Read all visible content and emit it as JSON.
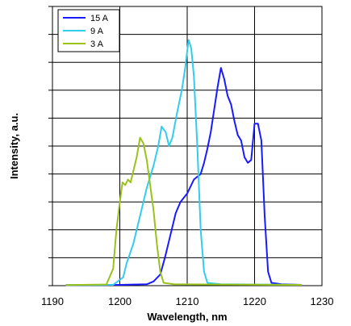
{
  "chart_data": {
    "type": "line",
    "xlabel": "Wavelength, nm",
    "ylabel": "Intensity, a.u.",
    "xlim": [
      1190,
      1230
    ],
    "ylim": [
      0,
      10
    ],
    "x_ticks": [
      "1190",
      "1200",
      "1210",
      "1220",
      "1230"
    ],
    "y_tick_labels_shown": false,
    "grid": "vertical and horizontal",
    "legend_position": "top-left",
    "series": [
      {
        "name": "15 A",
        "color": "#1a1aff",
        "points": [
          [
            1192,
            0.02
          ],
          [
            1200,
            0.03
          ],
          [
            1204,
            0.05
          ],
          [
            1205,
            0.15
          ],
          [
            1206,
            0.4
          ],
          [
            1206.7,
            1.0
          ],
          [
            1207.5,
            1.8
          ],
          [
            1208.3,
            2.6
          ],
          [
            1209,
            3.0
          ],
          [
            1210,
            3.3
          ],
          [
            1211,
            3.8
          ],
          [
            1212,
            4.0
          ],
          [
            1212.5,
            4.4
          ],
          [
            1213,
            4.9
          ],
          [
            1213.5,
            5.5
          ],
          [
            1214,
            6.3
          ],
          [
            1214.5,
            7.1
          ],
          [
            1215,
            7.8
          ],
          [
            1215.5,
            7.4
          ],
          [
            1216,
            6.8
          ],
          [
            1216.5,
            6.5
          ],
          [
            1217,
            5.9
          ],
          [
            1217.5,
            5.4
          ],
          [
            1218,
            5.2
          ],
          [
            1218.5,
            4.6
          ],
          [
            1219,
            4.4
          ],
          [
            1219.5,
            4.5
          ],
          [
            1220,
            5.8
          ],
          [
            1220.5,
            5.8
          ],
          [
            1221,
            5.2
          ],
          [
            1221.5,
            2.5
          ],
          [
            1222,
            0.5
          ],
          [
            1222.5,
            0.1
          ],
          [
            1224,
            0.05
          ],
          [
            1227,
            0.03
          ]
        ]
      },
      {
        "name": "9 A",
        "color": "#33ccee",
        "points": [
          [
            1192,
            0.02
          ],
          [
            1199,
            0.03
          ],
          [
            1200.5,
            0.3
          ],
          [
            1201,
            0.8
          ],
          [
            1202,
            1.5
          ],
          [
            1203,
            2.5
          ],
          [
            1204,
            3.5
          ],
          [
            1205,
            4.3
          ],
          [
            1205.7,
            5.0
          ],
          [
            1206.2,
            5.7
          ],
          [
            1206.8,
            5.5
          ],
          [
            1207.3,
            5.0
          ],
          [
            1207.8,
            5.3
          ],
          [
            1208.5,
            6.2
          ],
          [
            1209.2,
            7.0
          ],
          [
            1209.7,
            7.8
          ],
          [
            1210.2,
            8.8
          ],
          [
            1210.6,
            8.5
          ],
          [
            1211,
            7.5
          ],
          [
            1211.5,
            5.0
          ],
          [
            1212,
            2.0
          ],
          [
            1212.5,
            0.5
          ],
          [
            1213,
            0.1
          ],
          [
            1215,
            0.05
          ],
          [
            1227,
            0.03
          ]
        ]
      },
      {
        "name": "3 A",
        "color": "#99c31a",
        "points": [
          [
            1192,
            0.02
          ],
          [
            1198,
            0.04
          ],
          [
            1199,
            0.6
          ],
          [
            1199.5,
            2.0
          ],
          [
            1200,
            3.0
          ],
          [
            1200.4,
            3.7
          ],
          [
            1200.8,
            3.6
          ],
          [
            1201.2,
            3.8
          ],
          [
            1201.6,
            3.7
          ],
          [
            1202,
            4.1
          ],
          [
            1202.5,
            4.6
          ],
          [
            1203,
            5.3
          ],
          [
            1203.5,
            5.1
          ],
          [
            1204,
            4.5
          ],
          [
            1204.5,
            3.6
          ],
          [
            1205,
            2.7
          ],
          [
            1205.5,
            1.5
          ],
          [
            1206,
            0.5
          ],
          [
            1206.5,
            0.1
          ],
          [
            1208,
            0.05
          ],
          [
            1227,
            0.03
          ]
        ]
      }
    ]
  }
}
